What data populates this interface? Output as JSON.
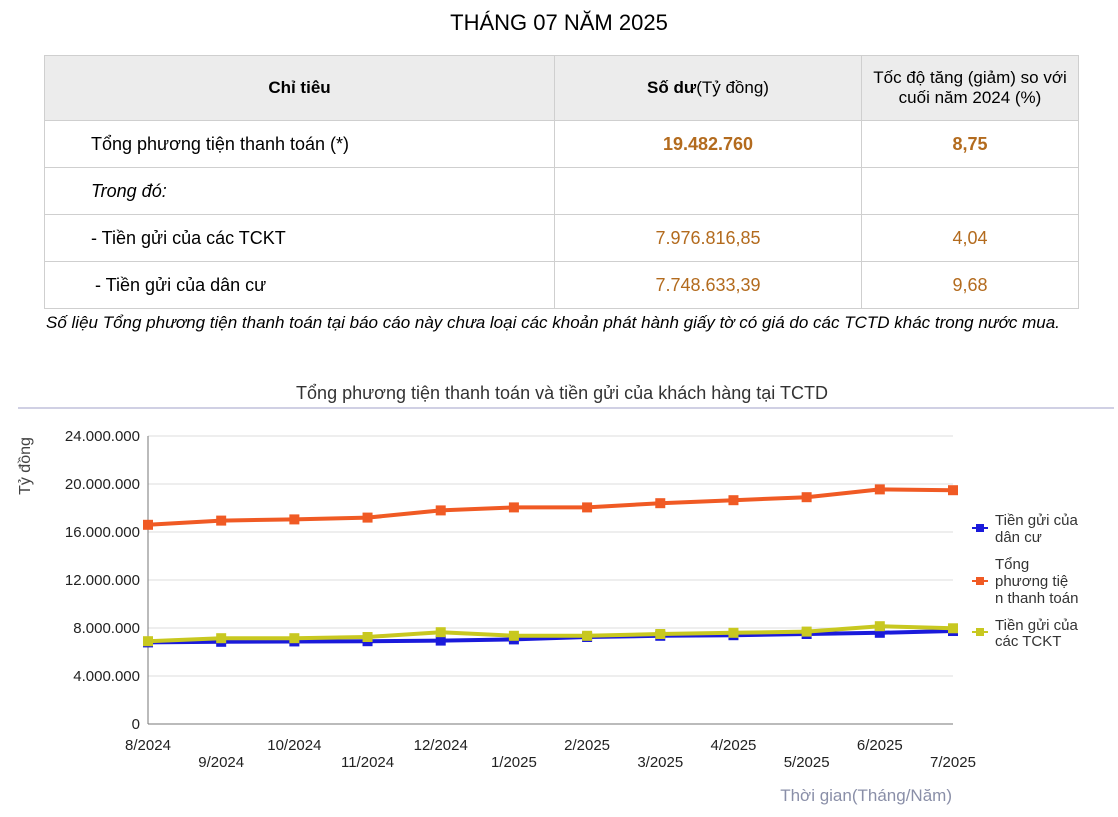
{
  "page": {
    "title": "THÁNG 07 NĂM 2025"
  },
  "table": {
    "headers": {
      "indicator": "Chỉ tiêu",
      "balance_bold": "Số dư",
      "balance_unit": "(Tỷ đồng)",
      "growth": "Tốc độ tăng (giảm) so với cuối năm 2024 (%)"
    },
    "rows": [
      {
        "label": "Tổng phương tiện thanh toán (*)",
        "balance": "19.482.760",
        "growth": "8,75"
      },
      {
        "label": "Trong đó:",
        "balance": "",
        "growth": ""
      },
      {
        "label": "- Tiền gửi của các TCKT",
        "balance": "7.976.816,85",
        "growth": "4,04"
      },
      {
        "label": " - Tiền gửi của dân cư",
        "balance": "7.748.633,39",
        "growth": "9,68"
      }
    ]
  },
  "note": "Số liệu Tổng phương tiện thanh toán tại báo cáo này chưa loại các khoản phát hành giấy tờ có giá do các TCTD khác trong nước mua.",
  "chart_data": {
    "type": "line",
    "title": "Tổng phương tiện thanh toán và tiền gửi của khách hàng tại TCTD",
    "ylabel": "Tỷ đồng",
    "xlabel": "Thời gian(Tháng/Năm)",
    "ylim": [
      0,
      24000000
    ],
    "yticks": [
      "24.000.000",
      "20.000.000",
      "16.000.000",
      "12.000.000",
      "8.000.000",
      "4.000.000",
      "0"
    ],
    "categories": [
      "8/2024",
      "9/2024",
      "10/2024",
      "11/2024",
      "12/2024",
      "1/2025",
      "2/2025",
      "3/2025",
      "4/2025",
      "5/2025",
      "6/2025",
      "7/2025"
    ],
    "grid": true,
    "legend_position": "right",
    "series": [
      {
        "name": "Tiền gửi của dân cư",
        "color": "#1a1adb",
        "values": [
          6800000,
          6850000,
          6880000,
          6900000,
          6950000,
          7050000,
          7250000,
          7350000,
          7400000,
          7500000,
          7600000,
          7748633
        ]
      },
      {
        "name": "Tổng phương tiện thanh toán",
        "color": "#f05a24",
        "values": [
          16600000,
          16950000,
          17050000,
          17200000,
          17800000,
          18050000,
          18050000,
          18400000,
          18650000,
          18900000,
          19550000,
          19482760
        ]
      },
      {
        "name": "Tiền gửi của các TCKT",
        "color": "#c8c820",
        "values": [
          6900000,
          7150000,
          7150000,
          7250000,
          7650000,
          7350000,
          7350000,
          7500000,
          7600000,
          7700000,
          8150000,
          7976817
        ]
      }
    ]
  }
}
